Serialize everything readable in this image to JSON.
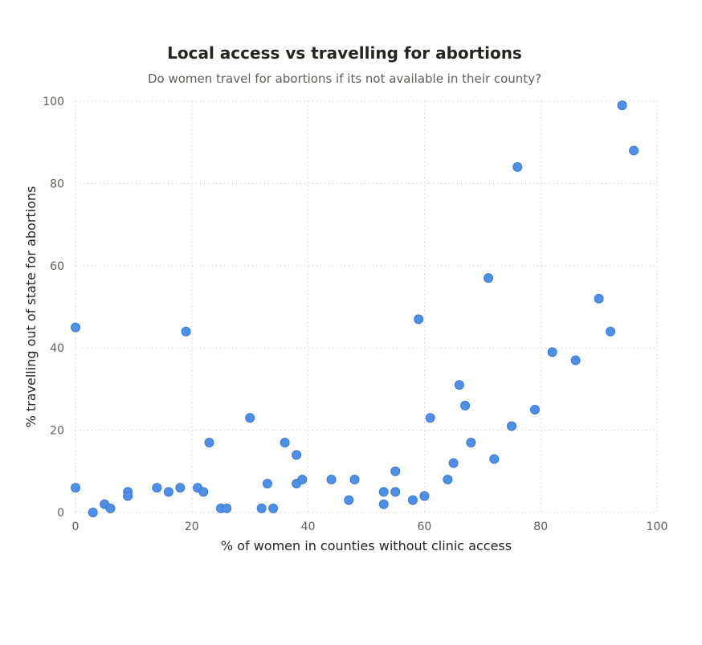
{
  "chart_data": {
    "type": "scatter",
    "title": "Local access vs travelling for abortions",
    "subtitle": "Do women travel for abortions if its not available in their county?",
    "xlabel": "% of women in counties without clinic access",
    "ylabel": "% travelling out of state for abortions",
    "xlim": [
      0,
      100
    ],
    "ylim": [
      0,
      100
    ],
    "xticks": [
      "0",
      "20",
      "40",
      "60",
      "80",
      "100"
    ],
    "yticks": [
      "0",
      "20",
      "40",
      "60",
      "80",
      "100"
    ],
    "grid": true,
    "color": "#4e8fe8",
    "points": [
      {
        "x": 0,
        "y": 45
      },
      {
        "x": 0,
        "y": 6
      },
      {
        "x": 3,
        "y": 0
      },
      {
        "x": 5,
        "y": 2
      },
      {
        "x": 6,
        "y": 1
      },
      {
        "x": 9,
        "y": 5
      },
      {
        "x": 9,
        "y": 4
      },
      {
        "x": 14,
        "y": 6
      },
      {
        "x": 16,
        "y": 5
      },
      {
        "x": 18,
        "y": 6
      },
      {
        "x": 19,
        "y": 44
      },
      {
        "x": 21,
        "y": 6
      },
      {
        "x": 22,
        "y": 5
      },
      {
        "x": 23,
        "y": 17
      },
      {
        "x": 25,
        "y": 1
      },
      {
        "x": 26,
        "y": 1
      },
      {
        "x": 30,
        "y": 23
      },
      {
        "x": 32,
        "y": 1
      },
      {
        "x": 33,
        "y": 7
      },
      {
        "x": 34,
        "y": 1
      },
      {
        "x": 36,
        "y": 17
      },
      {
        "x": 38,
        "y": 14
      },
      {
        "x": 38,
        "y": 7
      },
      {
        "x": 39,
        "y": 8
      },
      {
        "x": 44,
        "y": 8
      },
      {
        "x": 47,
        "y": 3
      },
      {
        "x": 48,
        "y": 8
      },
      {
        "x": 53,
        "y": 5
      },
      {
        "x": 53,
        "y": 2
      },
      {
        "x": 55,
        "y": 10
      },
      {
        "x": 55,
        "y": 5
      },
      {
        "x": 58,
        "y": 3
      },
      {
        "x": 59,
        "y": 47
      },
      {
        "x": 60,
        "y": 4
      },
      {
        "x": 61,
        "y": 23
      },
      {
        "x": 64,
        "y": 8
      },
      {
        "x": 65,
        "y": 12
      },
      {
        "x": 66,
        "y": 31
      },
      {
        "x": 67,
        "y": 26
      },
      {
        "x": 68,
        "y": 17
      },
      {
        "x": 71,
        "y": 57
      },
      {
        "x": 72,
        "y": 13
      },
      {
        "x": 75,
        "y": 21
      },
      {
        "x": 76,
        "y": 84
      },
      {
        "x": 79,
        "y": 25
      },
      {
        "x": 82,
        "y": 39
      },
      {
        "x": 86,
        "y": 37
      },
      {
        "x": 90,
        "y": 52
      },
      {
        "x": 92,
        "y": 44
      },
      {
        "x": 94,
        "y": 99
      },
      {
        "x": 96,
        "y": 88
      }
    ]
  }
}
